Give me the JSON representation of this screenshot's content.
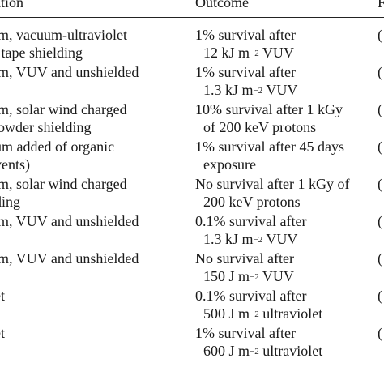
{
  "table": {
    "headers": {
      "col1": "lation",
      "col2": "Outcome",
      "col3": "F"
    },
    "rows": [
      {
        "condition": [
          "um, vacuum-ultraviolet",
          "n tape shielding"
        ],
        "outcome": {
          "l1": "1% survival after",
          "l2_pre": "12 kJ m",
          "l2_sup": "−2",
          "l2_post": " VUV"
        },
        "ref": "("
      },
      {
        "condition": [
          "um, VUV and unshielded"
        ],
        "outcome": {
          "l1": "1% survival after",
          "l2_pre": "1.3 kJ m",
          "l2_sup": "−2",
          "l2_post": " VUV"
        },
        "ref": "("
      },
      {
        "condition": [
          "um, solar wind charged",
          " powder shielding"
        ],
        "outcome": {
          "l1": "10% survival after 1 kGy",
          "l2_pre": "of 200 keV protons",
          "l2_sup": "",
          "l2_post": ""
        },
        "ref": "("
      },
      {
        "condition": [
          "ium added of organic",
          "lvents)"
        ],
        "outcome": {
          "l1": "1% survival after 45 days",
          "l2_pre": "exposure",
          "l2_sup": "",
          "l2_post": ""
        },
        "ref": "("
      },
      {
        "condition": [
          "um, solar wind charged",
          "lding"
        ],
        "outcome": {
          "l1": "No survival after 1 kGy of",
          "l2_pre": "200 keV protons",
          "l2_sup": "",
          "l2_post": ""
        },
        "ref": "("
      },
      {
        "condition": [
          "um, VUV and unshielded"
        ],
        "outcome": {
          "l1": "0.1% survival after",
          "l2_pre": "1.3 kJ m",
          "l2_sup": "−2",
          "l2_post": " VUV"
        },
        "ref": "("
      },
      {
        "condition": [
          "um, VUV and unshielded"
        ],
        "outcome": {
          "l1": "No survival after",
          "l2_pre": "150 J m",
          "l2_sup": "−2",
          "l2_post": " VUV"
        },
        "ref": "("
      },
      {
        "condition": [
          "let"
        ],
        "outcome": {
          "l1": "0.1% survival after",
          "l2_pre": "500 J m",
          "l2_sup": "−2",
          "l2_post": " ultraviolet"
        },
        "ref": "("
      },
      {
        "condition": [
          "let"
        ],
        "outcome": {
          "l1": "1% survival after",
          "l2_pre": "600 J m",
          "l2_sup": "−2",
          "l2_post": " ultraviolet"
        },
        "ref": "("
      }
    ]
  }
}
